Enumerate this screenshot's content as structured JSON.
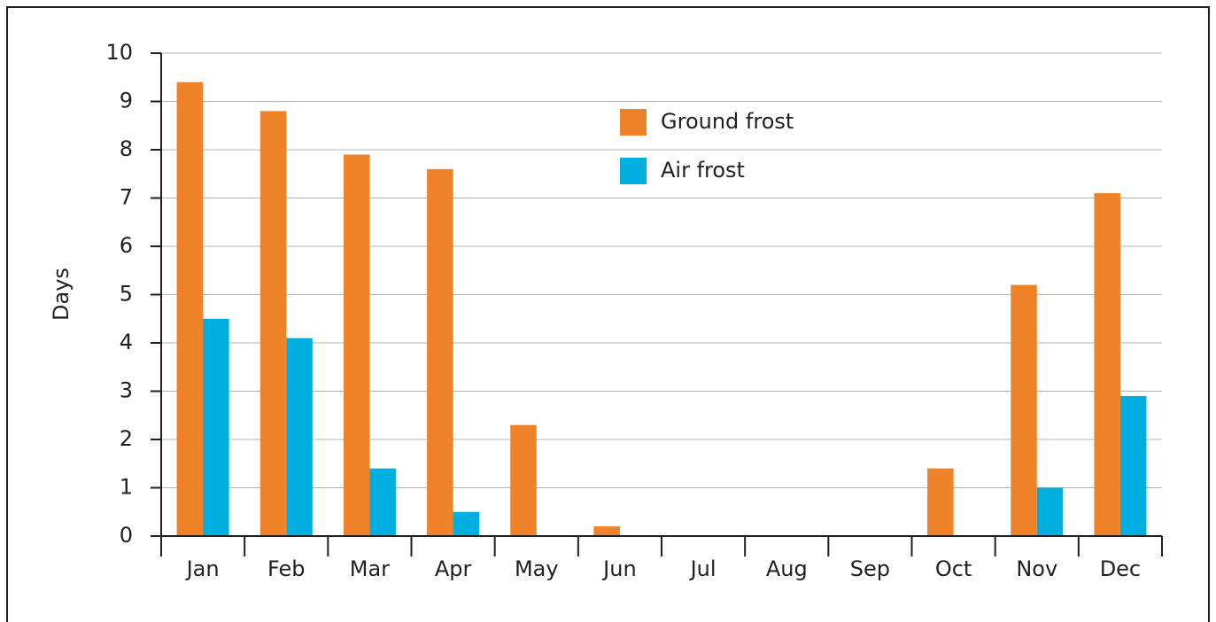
{
  "chart_data": {
    "type": "bar",
    "y_label": "Days",
    "categories": [
      "Jan",
      "Feb",
      "Mar",
      "Apr",
      "May",
      "Jun",
      "Jul",
      "Aug",
      "Sep",
      "Oct",
      "Nov",
      "Dec"
    ],
    "series": [
      {
        "name": "Ground frost",
        "color": "#f0822a",
        "values": [
          9.4,
          8.8,
          7.9,
          7.6,
          2.3,
          0.2,
          0,
          0,
          0,
          1.4,
          5.2,
          7.1
        ]
      },
      {
        "name": "Air frost",
        "color": "#00aedf",
        "values": [
          4.5,
          4.1,
          1.4,
          0.5,
          0,
          0,
          0,
          0,
          0,
          0,
          1.0,
          2.9
        ]
      }
    ],
    "ylim": [
      0,
      10
    ],
    "yticks": [
      0,
      1,
      2,
      3,
      4,
      5,
      6,
      7,
      8,
      9,
      10
    ],
    "grid": true
  }
}
